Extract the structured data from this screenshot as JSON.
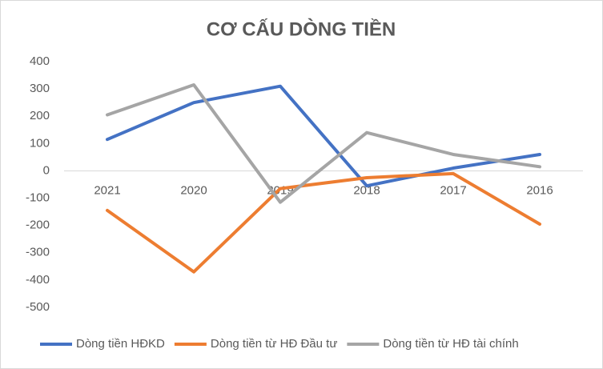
{
  "chart_data": {
    "type": "line",
    "title": "CƠ CẤU DÒNG TIỀN",
    "categories": [
      "2021",
      "2020",
      "2019",
      "2018",
      "2017",
      "2016"
    ],
    "series": [
      {
        "name": "Dòng tiền HĐKD",
        "color": "#4472c4",
        "values": [
          115,
          250,
          310,
          -55,
          10,
          60
        ]
      },
      {
        "name": "Dòng tiền từ HĐ Đầu tư",
        "color": "#ed7d31",
        "values": [
          -145,
          -370,
          -65,
          -25,
          -10,
          -195
        ]
      },
      {
        "name": "Dòng tiền từ HĐ tài chính",
        "color": "#a5a5a5",
        "values": [
          205,
          315,
          -115,
          140,
          60,
          15
        ]
      }
    ],
    "ylim": [
      -500,
      400
    ],
    "yticks": [
      -500,
      -400,
      -300,
      -200,
      -100,
      0,
      100,
      200,
      300,
      400
    ],
    "grid": false,
    "legend": "bottom"
  }
}
